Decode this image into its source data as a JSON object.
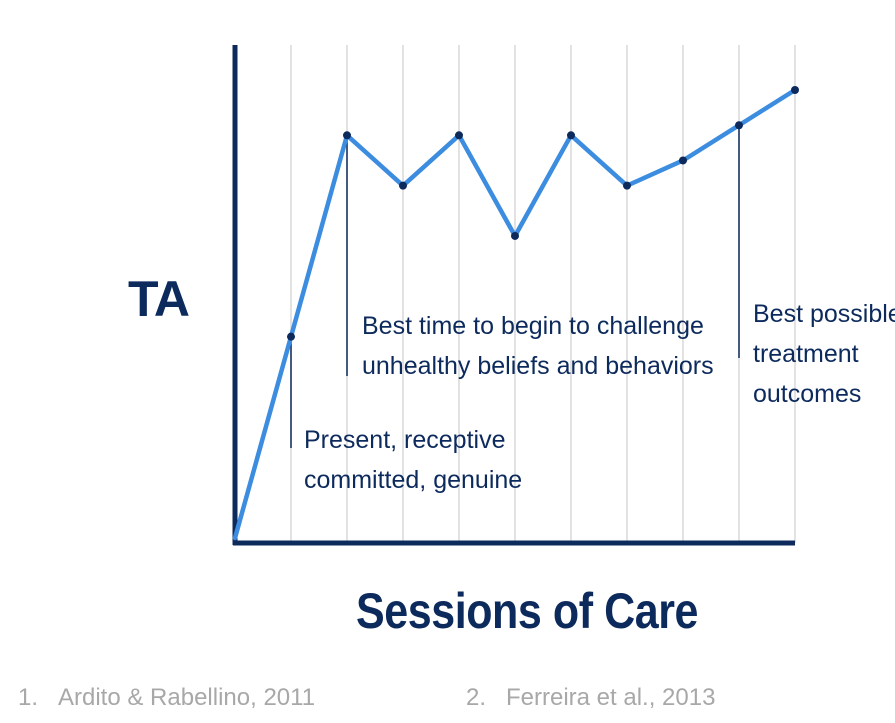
{
  "chart_data": {
    "type": "line",
    "title": "",
    "ylabel": "TA",
    "xlabel": "Sessions of Care",
    "x": [
      0,
      1,
      2,
      3,
      4,
      5,
      6,
      7,
      8,
      9,
      10
    ],
    "series": [
      {
        "values": [
          0,
          40,
          80,
          70,
          80,
          60,
          80,
          70,
          75,
          82,
          89
        ]
      }
    ],
    "xlim": [
      0,
      10
    ],
    "ylim": [
      0,
      100
    ],
    "grid": "vertical",
    "annotations": [
      {
        "x": 1,
        "lines": [
          "Present, receptive",
          "committed, genuine"
        ]
      },
      {
        "x": 2,
        "lines": [
          "Best time to begin to challenge",
          "unhealthy beliefs and behaviors"
        ]
      },
      {
        "x": 9,
        "lines": [
          "Best possible",
          "treatment",
          "outcomes"
        ]
      }
    ],
    "colors": {
      "line": "#3c8de0",
      "axis": "#0d2a5c",
      "grid": "#d9d9d9",
      "marker": "#0d2a5c"
    }
  },
  "references": [
    {
      "number": "1.",
      "text": "Ardito & Rabellino, 2011"
    },
    {
      "number": "2.",
      "text": "Ferreira et al., 2013"
    }
  ]
}
